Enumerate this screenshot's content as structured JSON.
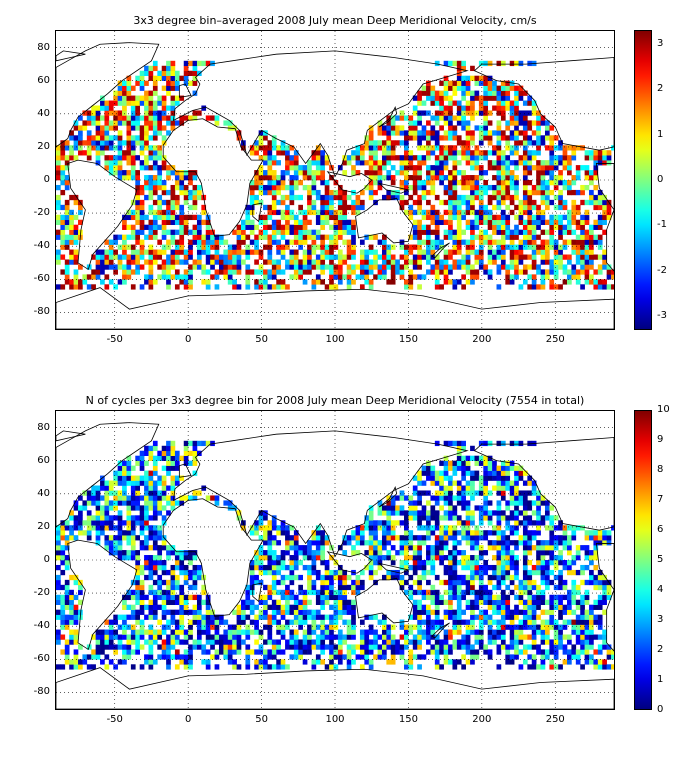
{
  "panels": [
    {
      "title": "3x3 degree bin–averaged 2008 July mean Deep Meridional Velocity, cm/s",
      "colorbar_ticks": [
        "3",
        "2",
        "1",
        "0",
        "-1",
        "-2",
        "-3"
      ]
    },
    {
      "title": "N of cycles per 3x3 degree bin for 2008 July mean Deep Meridional Velocity (7554 in total)",
      "colorbar_ticks": [
        "10",
        "9",
        "8",
        "7",
        "6",
        "5",
        "4",
        "3",
        "2",
        "1",
        "0"
      ]
    }
  ],
  "axes": {
    "y_ticks": [
      "80",
      "60",
      "40",
      "20",
      "0",
      "-20",
      "-40",
      "-60",
      "-80"
    ],
    "x_ticks": [
      "-50",
      "0",
      "50",
      "100",
      "150",
      "200",
      "250"
    ]
  },
  "chart_data": [
    {
      "type": "heatmap",
      "title": "3x3 degree bin–averaged 2008 July mean Deep Meridional Velocity, cm/s",
      "xlim": [
        -90,
        290
      ],
      "ylim": [
        -90,
        90
      ],
      "grid": true,
      "colorbar": {
        "min": -3.3,
        "max": 3.3,
        "colormap": "jet",
        "units": "cm/s"
      },
      "bin_size_deg": 3
    },
    {
      "type": "heatmap",
      "title": "N of cycles per 3x3 degree bin for 2008 July mean Deep Meridional Velocity (7554 in total)",
      "xlim": [
        -90,
        290
      ],
      "ylim": [
        -90,
        90
      ],
      "grid": true,
      "colorbar": {
        "min": 0,
        "max": 10,
        "colormap": "jet"
      },
      "total_cycles": 7554,
      "bin_size_deg": 3
    }
  ]
}
